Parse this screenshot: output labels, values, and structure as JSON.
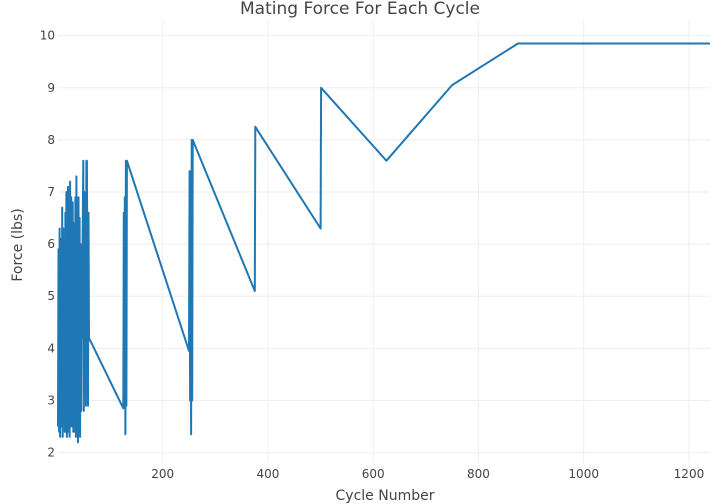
{
  "chart_data": {
    "type": "line",
    "title": "Mating Force For Each Cycle",
    "xlabel": "Cycle Number",
    "ylabel": "Force (lbs)",
    "xlim": [
      1,
      1240
    ],
    "ylim": [
      1.8,
      10.3
    ],
    "xticks": [
      200,
      400,
      600,
      800,
      1000,
      1200
    ],
    "yticks": [
      2,
      3,
      4,
      5,
      6,
      7,
      8,
      9,
      10
    ],
    "grid": true,
    "series": [
      {
        "color": "#1f77b4",
        "x": [
          1,
          2,
          3,
          4,
          5,
          6,
          7,
          8,
          9,
          10,
          11,
          12,
          13,
          14,
          15,
          16,
          17,
          18,
          19,
          20,
          21,
          22,
          23,
          24,
          25,
          26,
          27,
          28,
          29,
          30,
          31,
          32,
          33,
          34,
          35,
          36,
          37,
          38,
          39,
          40,
          41,
          42,
          43,
          44,
          45,
          46,
          47,
          48,
          49,
          50,
          51,
          52,
          53,
          54,
          55,
          56,
          57,
          58,
          59,
          60,
          125,
          126,
          127,
          128,
          129,
          130,
          131,
          132,
          250,
          251,
          252,
          253,
          254,
          255,
          256,
          257,
          375,
          376,
          500,
          501,
          625,
          750,
          875,
          1240
        ],
        "y": [
          2.5,
          5.9,
          2.4,
          6.3,
          2.3,
          4.5,
          6.1,
          2.5,
          6.7,
          2.3,
          6.3,
          3.2,
          4.4,
          2.4,
          6.6,
          2.4,
          7.0,
          2.3,
          5.0,
          7.1,
          2.4,
          5.9,
          2.3,
          7.2,
          2.5,
          6.9,
          3.3,
          2.5,
          6.8,
          2.4,
          6.4,
          3.2,
          2.4,
          6.9,
          2.3,
          7.3,
          2.4,
          5.8,
          2.2,
          6.9,
          2.4,
          6.5,
          2.3,
          6.0,
          2.8,
          5.3,
          4.2,
          6.3,
          7.6,
          2.8,
          7.0,
          4.2,
          6.2,
          2.9,
          7.6,
          7.6,
          5.0,
          2.9,
          6.6,
          4.2,
          2.85,
          6.6,
          3.2,
          6.9,
          2.35,
          7.6,
          2.9,
          7.6,
          3.95,
          7.4,
          3.0,
          7.35,
          2.35,
          8.0,
          3.0,
          8.0,
          5.1,
          8.25,
          6.3,
          9.0,
          7.6,
          9.05,
          9.85,
          9.85
        ]
      }
    ]
  }
}
